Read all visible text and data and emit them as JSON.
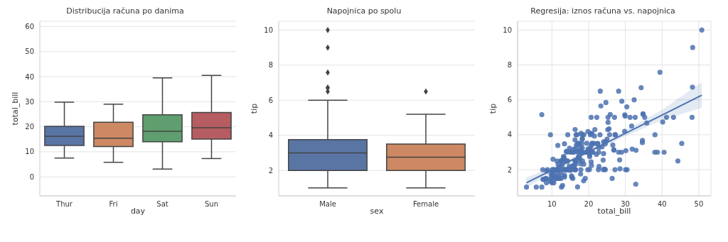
{
  "chart_data": [
    {
      "type": "box",
      "title": "Distribucija računa po danima",
      "xlabel": "day",
      "ylabel": "total_bill",
      "categories": [
        "Thur",
        "Fri",
        "Sat",
        "Sun"
      ],
      "colors": [
        "#5975a4",
        "#cc8963",
        "#5f9e6e",
        "#b55d60"
      ],
      "boxes": [
        {
          "low": 7.5,
          "q1": 12.5,
          "median": 16.2,
          "q3": 20.2,
          "high": 29.8
        },
        {
          "low": 5.8,
          "q1": 12.1,
          "median": 15.4,
          "q3": 21.8,
          "high": 29
        },
        {
          "low": 3.1,
          "q1": 14,
          "median": 18.2,
          "q3": 24.8,
          "high": 39.5
        },
        {
          "low": 7.3,
          "q1": 15.1,
          "median": 19.6,
          "q3": 25.7,
          "high": 40.5
        }
      ],
      "ylim": [
        -7.6,
        62.1
      ],
      "yticks": [
        0,
        10,
        20,
        30,
        40,
        50,
        60
      ],
      "grid": "y"
    },
    {
      "type": "box",
      "title": "Napojnica po spolu",
      "xlabel": "sex",
      "ylabel": "tip",
      "categories": [
        "Male",
        "Female"
      ],
      "colors": [
        "#5975a4",
        "#cc8963"
      ],
      "boxes": [
        {
          "low": 1,
          "q1": 2,
          "median": 3,
          "q3": 3.76,
          "high": 6,
          "outliers": [
            6.5,
            6.7,
            6.73,
            7.58,
            9,
            10
          ]
        },
        {
          "low": 1,
          "q1": 2,
          "median": 2.75,
          "q3": 3.5,
          "high": 5.2,
          "outliers": [
            6.5
          ]
        }
      ],
      "ylim": [
        0.55,
        10.5
      ],
      "yticks": [
        2,
        4,
        6,
        8,
        10
      ],
      "grid": "y",
      "marker": "diamond"
    },
    {
      "type": "scatter",
      "title": "Regresija: iznos računa vs. napojnica",
      "xlabel": "total_bill",
      "ylabel": "tip",
      "xlim": [
        0.65,
        53.3
      ],
      "xticks": [
        10,
        20,
        30,
        40,
        50
      ],
      "ylim": [
        0.5,
        10.5
      ],
      "yticks": [
        2,
        4,
        6,
        8,
        10
      ],
      "grid": true,
      "series": [
        {
          "type": "scatter",
          "color": "#4c72b0",
          "marker": "circle",
          "x": [
            16.99,
            21.01,
            23.68,
            24.59,
            25.29,
            8.77,
            26.88,
            15.04,
            14.78,
            10.27,
            35.26,
            15.42,
            14.83,
            21.58,
            16.29,
            16.97,
            20.65,
            17.92,
            20.29,
            15.77,
            39.42,
            19.82,
            17.81,
            13.37,
            21.7,
            19.65,
            9.55,
            18.35,
            15.06,
            20.69,
            17.78,
            24.06,
            16.31,
            16.93,
            18.69,
            31.27,
            16.04,
            17.46,
            13.94,
            9.68,
            30.4,
            22.23,
            32.4,
            28.55,
            18.04,
            12.54,
            10.29,
            34.81,
            9.94,
            25.56,
            19.49,
            38.01,
            26.41,
            11.24,
            48.27,
            20.29,
            13.81,
            11.02,
            18.29,
            17.59,
            20.08,
            16.45,
            3.07,
            20.23,
            15.01,
            12.02,
            17.07,
            26.86,
            25.28,
            14.73,
            10.51,
            17.92,
            27.2,
            22.76,
            17.29,
            19.44,
            16.66,
            10.07,
            32.68,
            34.83,
            18.28,
            24.71,
            21.16,
            28.97,
            22.49,
            5.75,
            16.32,
            22.75,
            40.17,
            27.28,
            12.03,
            21.01,
            12.46,
            11.35,
            44.3,
            22.42,
            20.92,
            15.36,
            20.49,
            25.21,
            18.24,
            14.31,
            14,
            7.25,
            38.07,
            23.95,
            25.71,
            17.31,
            29.93,
            12.43,
            24.08,
            11.69,
            13.42,
            14.26,
            12.48,
            29.8,
            8.52,
            14.52,
            11.38,
            22.82,
            19.08,
            20.27,
            11.17,
            12.26,
            18.26,
            8.51,
            10.33,
            14.15,
            13.16,
            17.47,
            34.3,
            41.19,
            27.05,
            16.43,
            8.35,
            18.64,
            11.87,
            9.78,
            7.51,
            14.07,
            17.26,
            24.55,
            19.77,
            29.85,
            48.17,
            25,
            13.39,
            16.49,
            21.5,
            12.66,
            16.21,
            13.81,
            17.51,
            24.52,
            20.76,
            31.71,
            10.59,
            10.63,
            50.81,
            15.81,
            7.25,
            31.85,
            16.82,
            32.9,
            17.89,
            14.48,
            9.6,
            34.63,
            34.65,
            23.33,
            45.35,
            23.17,
            40.55,
            20.69,
            20.9,
            30.46,
            18.15,
            23.1,
            15.69,
            19.81,
            28.44,
            15.48,
            16.58,
            7.56,
            43.11,
            13.51,
            18.71,
            16.4,
            20.53,
            16.47,
            26.59,
            38.73,
            24.27,
            12.76,
            30.06,
            25.89,
            48.33,
            13.27,
            28.17,
            12.9,
            28.15,
            11.59,
            7.74,
            30.14,
            12.16,
            13.42,
            8.58,
            15.98,
            13.42,
            16.27,
            10.09,
            20.45,
            13.28,
            22.12,
            24.01,
            15.69,
            11.61,
            10.77,
            10.07,
            12.6,
            32.83,
            35.83,
            29.03,
            27.18,
            22.67,
            17.82,
            18.78
          ],
          "values": [
            1.01,
            3.5,
            3.31,
            3.61,
            4.71,
            2,
            3.12,
            1.96,
            3.23,
            1.71,
            5,
            1.57,
            3.02,
            3.92,
            3.71,
            3.5,
            3.35,
            4.08,
            2.75,
            2.23,
            7.58,
            3.18,
            2.34,
            2,
            4.3,
            3,
            1.45,
            2.5,
            3,
            2.45,
            3.27,
            3.6,
            2,
            3.07,
            2.31,
            5,
            2.24,
            2.54,
            3.06,
            1.32,
            5.6,
            5,
            6,
            2.05,
            3,
            2.5,
            2.6,
            5.2,
            1.56,
            4.34,
            3.51,
            3,
            1.5,
            1.76,
            6.73,
            3.21,
            2,
            1.98,
            3.76,
            2.64,
            3.15,
            2.47,
            1,
            2.01,
            2.09,
            1.97,
            3,
            3.14,
            5,
            2.2,
            1.25,
            3.08,
            4,
            3,
            2.71,
            3,
            3.4,
            1.83,
            5,
            5.17,
            4,
            5.85,
            3,
            3,
            3.5,
            1,
            4.3,
            3.25,
            4.73,
            4,
            1.5,
            3,
            1.5,
            2.5,
            2.5,
            3.48,
            4.08,
            1.64,
            4.06,
            4.29,
            3.76,
            4,
            3,
            1,
            4,
            2.55,
            4,
            3.5,
            5.07,
            1.8,
            2.92,
            2.31,
            1.68,
            2.5,
            2.52,
            4.2,
            1.48,
            2,
            2,
            2.18,
            1.5,
            2.83,
            1.5,
            2,
            3.25,
            1.25,
            2,
            2,
            2.75,
            3.5,
            6.7,
            5,
            5,
            2.3,
            1.5,
            1.36,
            1.63,
            1.73,
            2,
            2.5,
            2.74,
            2,
            2,
            5.14,
            5,
            3.75,
            2.61,
            2,
            3.5,
            2.5,
            2,
            2,
            3,
            3.48,
            2.24,
            4.5,
            1.61,
            2,
            10,
            3.16,
            5.15,
            3.18,
            4,
            3.11,
            2,
            2,
            4,
            3.55,
            3.68,
            5.65,
            3.5,
            6.5,
            3,
            5,
            3.5,
            2,
            3.5,
            4,
            1.5,
            4.19,
            2.56,
            2.02,
            4,
            1.44,
            5,
            2,
            4,
            2.5,
            4,
            3.23,
            3.41,
            3,
            2.03,
            2.23,
            2,
            5.16,
            9,
            2.5,
            6.5,
            1.1,
            3,
            1.5,
            1.44,
            3.09,
            2.2,
            3.48,
            1.92,
            3,
            1.58,
            2.5,
            2,
            3,
            2.72,
            2.88,
            2,
            3,
            3.39,
            1.47,
            1.25,
            1,
            1.17,
            4.67,
            5.92,
            2,
            2,
            1.75,
            3
          ]
        },
        {
          "type": "line",
          "color": "#4c72b0",
          "x": [
            3.07,
            10,
            20,
            30,
            40,
            50.81
          ],
          "values": [
            1.25,
            1.98,
            3.03,
            4.08,
            5.13,
            6.27
          ],
          "lower": [
            0.97,
            1.83,
            2.92,
            3.91,
            4.83,
            5.55
          ],
          "upper": [
            1.55,
            2.13,
            3.14,
            4.25,
            5.43,
            7.0
          ]
        }
      ]
    }
  ]
}
